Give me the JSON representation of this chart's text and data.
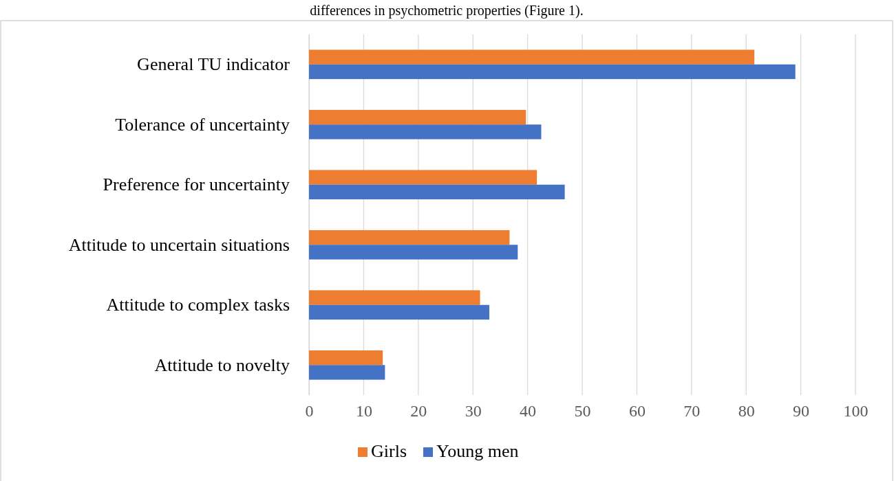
{
  "chart_data": {
    "type": "bar",
    "orientation": "horizontal",
    "annotations": [
      "differences in psychometric properties (Figure 1)."
    ],
    "categories": [
      "General TU indicator",
      "Tolerance of uncertainty",
      "Preference for uncertainty",
      "Attitude to uncertain situations",
      "Attitude to complex tasks",
      "Attitude to novelty"
    ],
    "series": [
      {
        "name": "Girls",
        "color": "#ed7d31",
        "values": [
          81.5,
          39.7,
          41.7,
          36.7,
          31.3,
          13.5
        ]
      },
      {
        "name": "Young men",
        "color": "#4472c4",
        "values": [
          89,
          42.5,
          46.8,
          38.2,
          33,
          13.9
        ]
      }
    ],
    "xlim": [
      0,
      100
    ],
    "xticks": [
      0,
      10,
      20,
      30,
      40,
      50,
      60,
      70,
      80,
      90,
      100
    ],
    "grid": "x",
    "legend": "bottom"
  }
}
